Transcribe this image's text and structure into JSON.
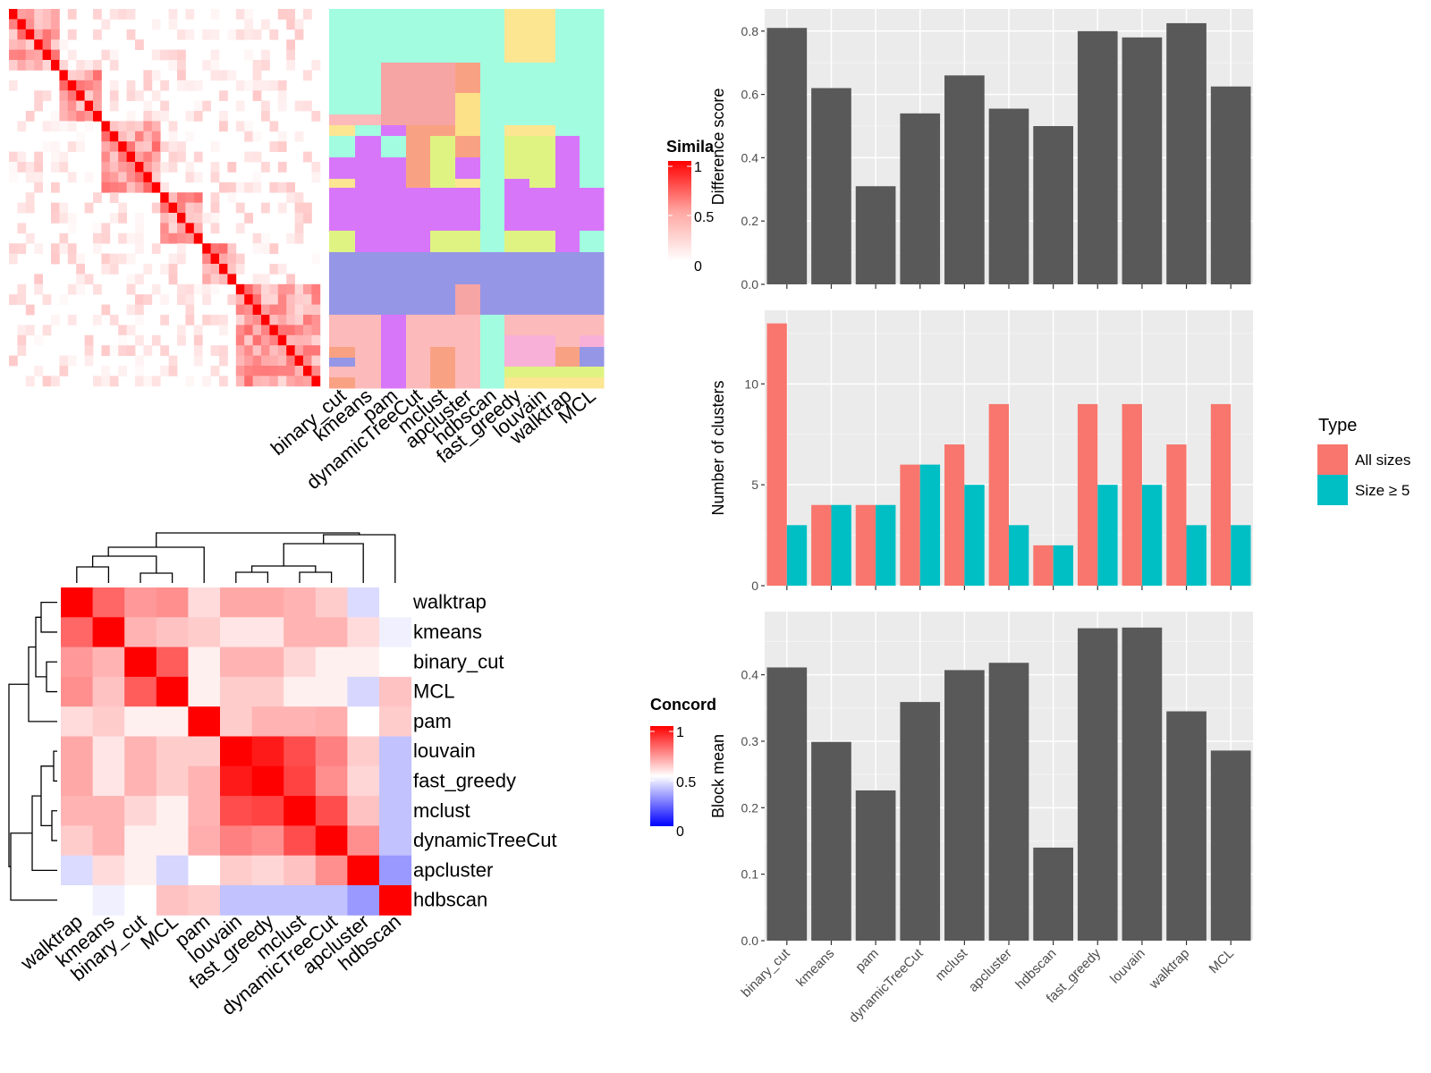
{
  "chart_data": [
    {
      "type": "heatmap",
      "panel": "similarity-heatmap",
      "legend": {
        "title": "Simila",
        "ticks": [
          "1",
          "0.5",
          "0"
        ]
      },
      "column_labels": [
        "binary_cut",
        "kmeans",
        "pam",
        "dynamicTreeCut",
        "mclust",
        "apcluster",
        "hdbscan",
        "fast_greedy",
        "louvain",
        "walktrap",
        "MCL"
      ]
    },
    {
      "type": "heatmap",
      "panel": "concordance-heatmap",
      "legend": {
        "title": "Concord",
        "ticks": [
          "1",
          "0.5",
          "0"
        ]
      },
      "row_labels": [
        "walktrap",
        "kmeans",
        "binary_cut",
        "MCL",
        "pam",
        "louvain",
        "fast_greedy",
        "mclust",
        "dynamicTreeCut",
        "apcluster",
        "hdbscan"
      ],
      "col_labels": [
        "walktrap",
        "kmeans",
        "binary_cut",
        "MCL",
        "pam",
        "louvain",
        "fast_greedy",
        "mclust",
        "dynamicTreeCut",
        "apcluster",
        "hdbscan"
      ],
      "values": [
        [
          1.0,
          0.8,
          0.7,
          0.72,
          0.57,
          0.67,
          0.67,
          0.65,
          0.6,
          0.43,
          0.5
        ],
        [
          0.8,
          1.0,
          0.65,
          0.62,
          0.6,
          0.55,
          0.55,
          0.65,
          0.65,
          0.57,
          0.47
        ],
        [
          0.7,
          0.65,
          1.0,
          0.82,
          0.53,
          0.65,
          0.65,
          0.58,
          0.53,
          0.53,
          0.5
        ],
        [
          0.72,
          0.62,
          0.82,
          1.0,
          0.53,
          0.6,
          0.6,
          0.53,
          0.53,
          0.42,
          0.62
        ],
        [
          0.57,
          0.6,
          0.53,
          0.53,
          1.0,
          0.6,
          0.65,
          0.65,
          0.66,
          0.5,
          0.6
        ],
        [
          0.67,
          0.55,
          0.65,
          0.6,
          0.6,
          1.0,
          0.95,
          0.85,
          0.75,
          0.6,
          0.38
        ],
        [
          0.67,
          0.55,
          0.65,
          0.6,
          0.65,
          0.95,
          1.0,
          0.87,
          0.72,
          0.58,
          0.38
        ],
        [
          0.65,
          0.65,
          0.58,
          0.53,
          0.65,
          0.85,
          0.87,
          1.0,
          0.85,
          0.62,
          0.38
        ],
        [
          0.6,
          0.65,
          0.53,
          0.53,
          0.66,
          0.75,
          0.72,
          0.85,
          1.0,
          0.72,
          0.38
        ],
        [
          0.43,
          0.57,
          0.53,
          0.42,
          0.5,
          0.6,
          0.58,
          0.62,
          0.72,
          1.0,
          0.3
        ],
        [
          0.5,
          0.47,
          0.5,
          0.62,
          0.6,
          0.38,
          0.38,
          0.38,
          0.38,
          0.3,
          1.0
        ]
      ]
    },
    {
      "type": "bar",
      "panel": "difference-score",
      "categories": [
        "binary_cut",
        "kmeans",
        "pam",
        "dynamicTreeCut",
        "mclust",
        "apcluster",
        "hdbscan",
        "fast_greedy",
        "louvain",
        "walktrap",
        "MCL"
      ],
      "values": [
        0.81,
        0.62,
        0.31,
        0.54,
        0.66,
        0.555,
        0.5,
        0.8,
        0.78,
        0.825,
        0.625
      ],
      "ylabel": "Difference score",
      "ylim": [
        0,
        0.87
      ],
      "yticks": [
        0.0,
        0.2,
        0.4,
        0.6,
        0.8
      ],
      "ytick_labels": [
        "0.0",
        "0.2",
        "0.4",
        "0.6",
        "0.8"
      ],
      "color": "#595959"
    },
    {
      "type": "bar",
      "panel": "number-of-clusters",
      "categories": [
        "binary_cut",
        "kmeans",
        "pam",
        "dynamicTreeCut",
        "mclust",
        "apcluster",
        "hdbscan",
        "fast_greedy",
        "louvain",
        "walktrap",
        "MCL"
      ],
      "series": [
        {
          "name": "All sizes",
          "values": [
            13,
            4,
            4,
            6,
            7,
            9,
            2,
            9,
            9,
            7,
            9
          ],
          "color": "#F8766D"
        },
        {
          "name": "Size ≥ 5",
          "values": [
            3,
            4,
            4,
            6,
            5,
            3,
            2,
            5,
            5,
            3,
            3
          ],
          "color": "#00BFC4"
        }
      ],
      "ylabel": "Number of clusters",
      "ylim": [
        0,
        13.65
      ],
      "yticks": [
        0,
        5,
        10
      ],
      "ytick_labels": [
        "0",
        "5",
        "10"
      ],
      "legend": {
        "title": "Type",
        "position": "right"
      }
    },
    {
      "type": "bar",
      "panel": "block-mean",
      "categories": [
        "binary_cut",
        "kmeans",
        "pam",
        "dynamicTreeCut",
        "mclust",
        "apcluster",
        "hdbscan",
        "fast_greedy",
        "louvain",
        "walktrap",
        "MCL"
      ],
      "values": [
        0.411,
        0.299,
        0.226,
        0.359,
        0.407,
        0.418,
        0.14,
        0.47,
        0.471,
        0.345,
        0.286
      ],
      "ylabel": "Block mean",
      "ylim": [
        0,
        0.495
      ],
      "yticks": [
        0.0,
        0.1,
        0.2,
        0.3,
        0.4
      ],
      "ytick_labels": [
        "0.0",
        "0.1",
        "0.2",
        "0.3",
        "0.4"
      ],
      "color": "#595959"
    }
  ]
}
